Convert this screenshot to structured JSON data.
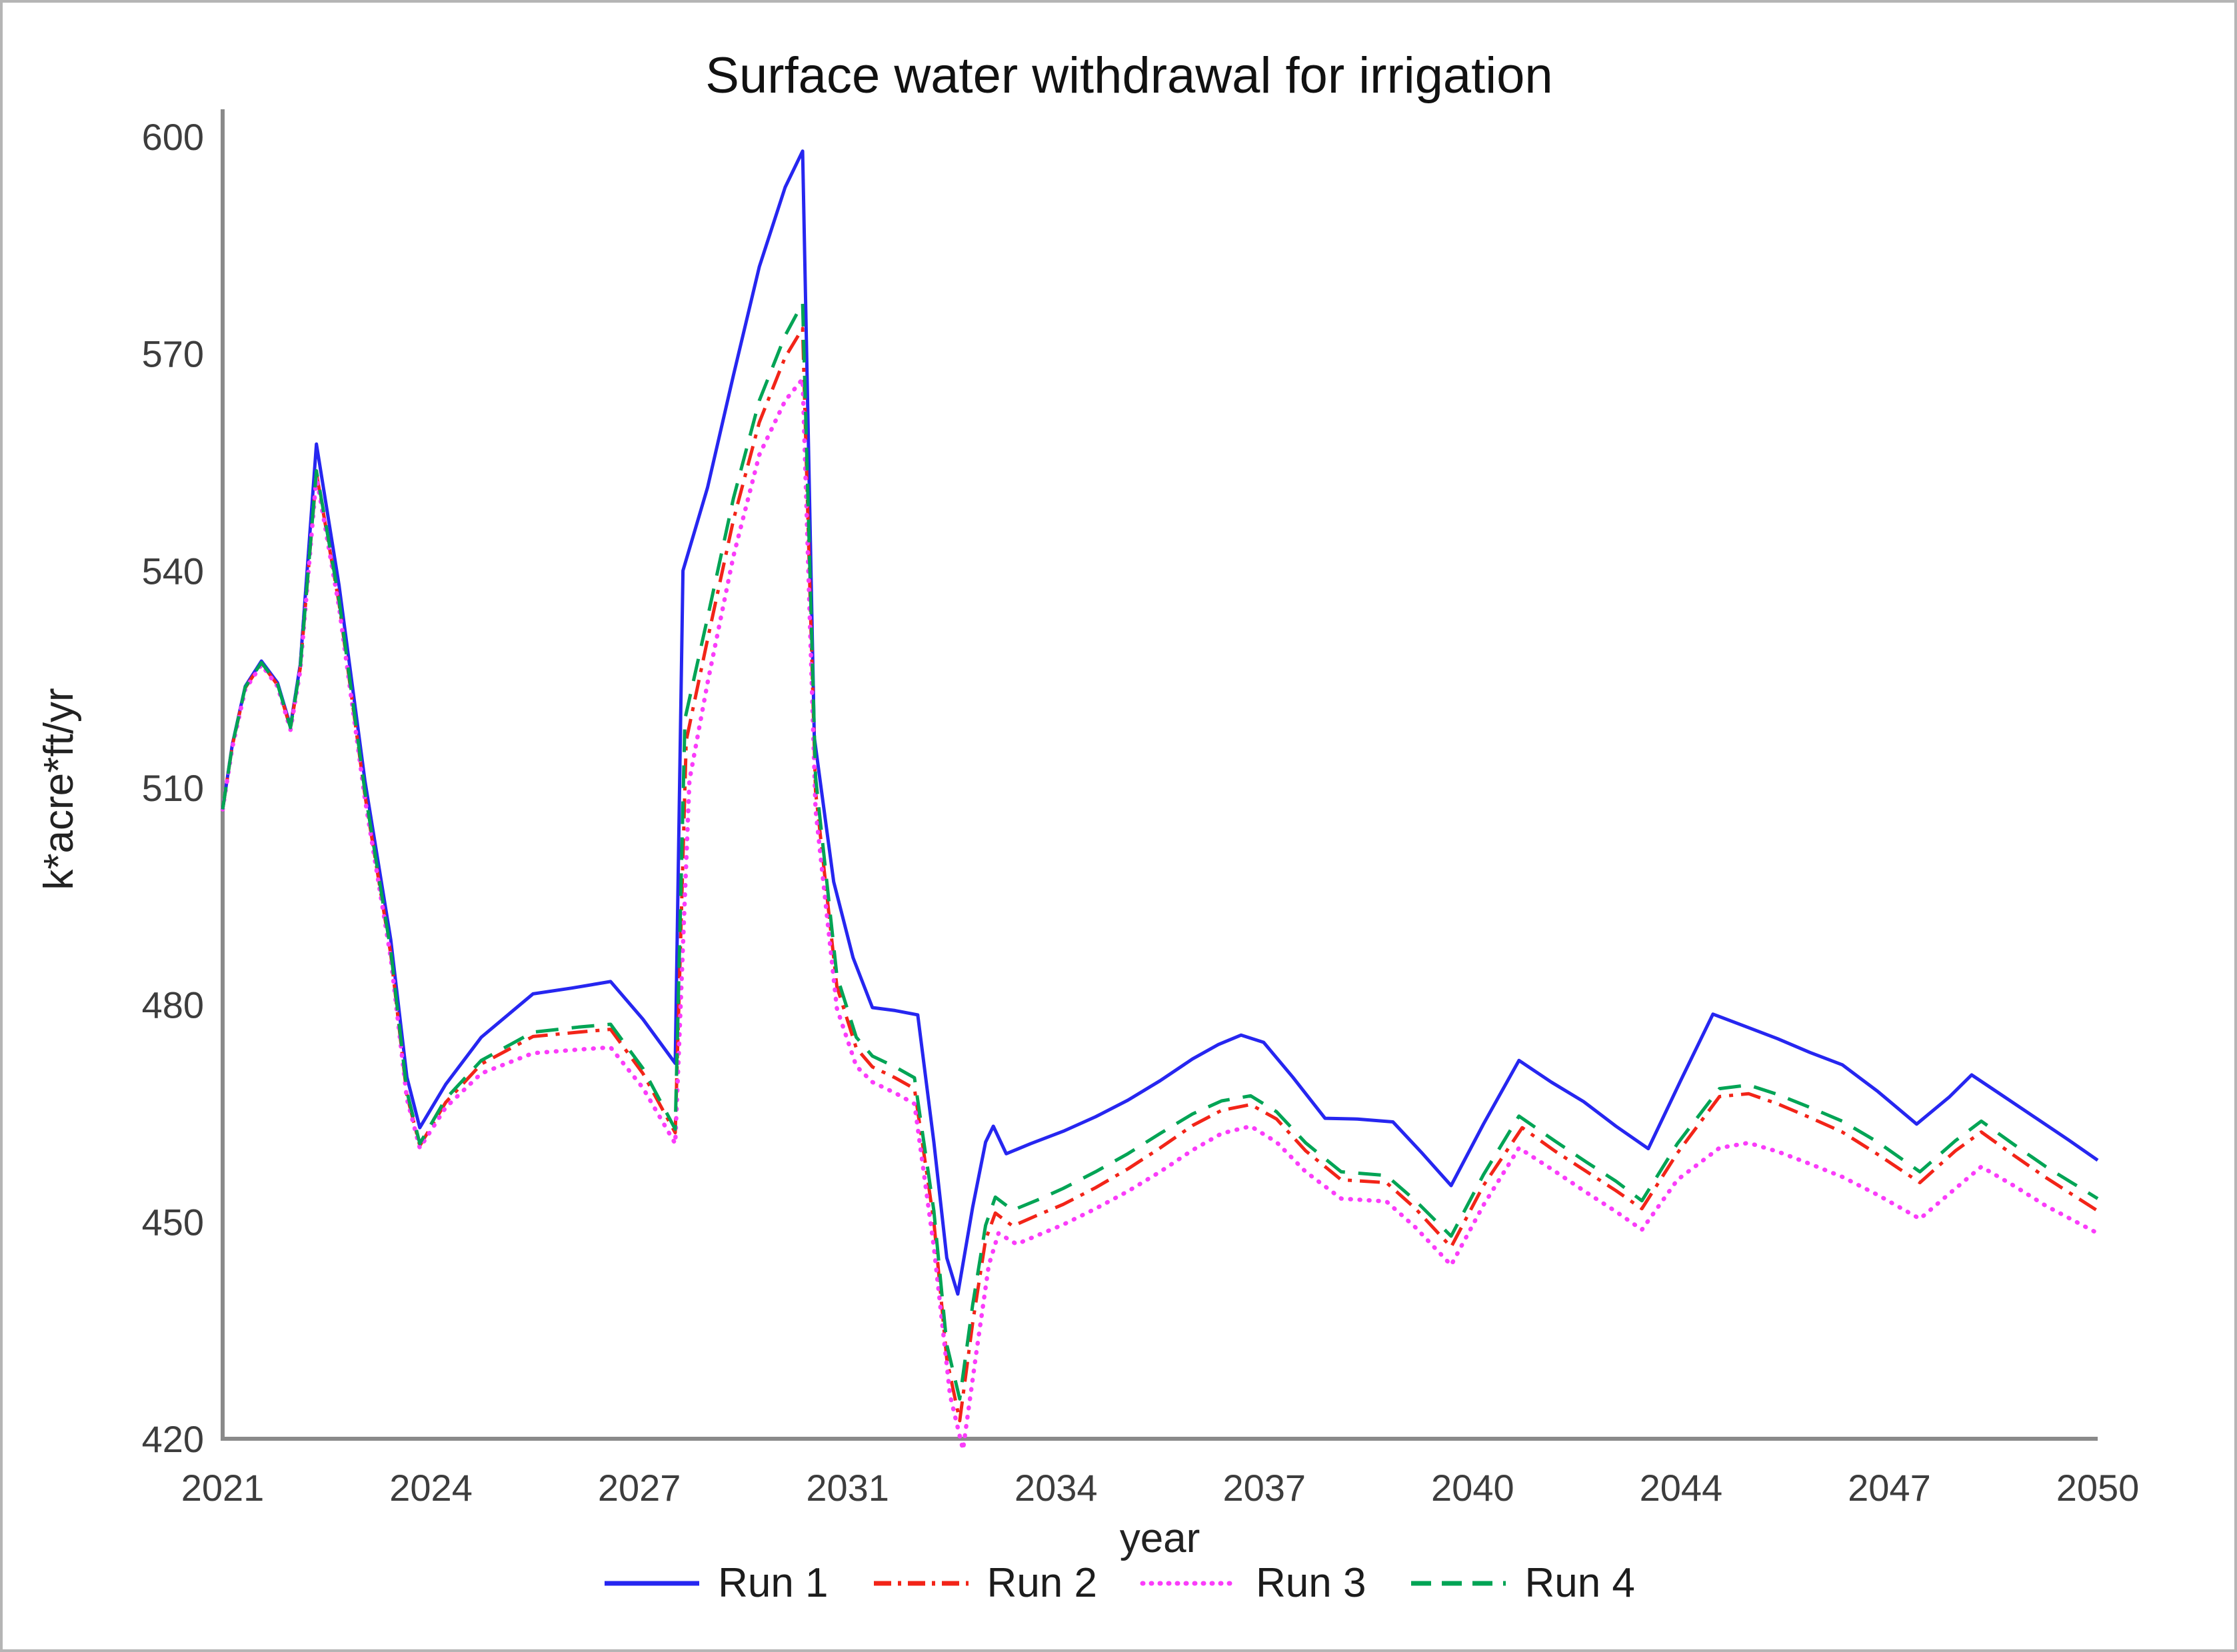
{
  "chart_data": {
    "type": "line",
    "title": "Surface water withdrawal for irrigation",
    "xlabel": "year",
    "ylabel": "k*acre*ft/yr",
    "xlim": [
      2021,
      2050
    ],
    "ylim": [
      420,
      600
    ],
    "grid": false,
    "legend_position": "bottom",
    "axis_color": "#8a8a8a",
    "x_tick_labels": [
      "2021",
      "2024",
      "2027",
      "2031",
      "2034",
      "2037",
      "2040",
      "2044",
      "2047",
      "2050"
    ],
    "y_ticks": [
      420,
      450,
      480,
      510,
      540,
      570,
      600
    ],
    "series": [
      {
        "name": "Run 1",
        "color": "#2626f0",
        "style": "solid",
        "points": [
          [
            2021.0,
            507
          ],
          [
            2021.15,
            516
          ],
          [
            2021.35,
            524
          ],
          [
            2021.6,
            527.5
          ],
          [
            2021.85,
            524.5
          ],
          [
            2022.05,
            518.5
          ],
          [
            2022.2,
            527
          ],
          [
            2022.45,
            557.5
          ],
          [
            2022.8,
            538
          ],
          [
            2023.2,
            511
          ],
          [
            2023.6,
            489
          ],
          [
            2023.85,
            470
          ],
          [
            2024.05,
            463
          ],
          [
            2024.45,
            469
          ],
          [
            2025.0,
            475.5
          ],
          [
            2025.8,
            481.5
          ],
          [
            2026.4,
            482.3
          ],
          [
            2027.0,
            483.2
          ],
          [
            2027.5,
            478
          ],
          [
            2028.0,
            471.9
          ],
          [
            2028.12,
            540
          ],
          [
            2028.5,
            551.5
          ],
          [
            2028.9,
            567
          ],
          [
            2029.3,
            582
          ],
          [
            2029.7,
            593
          ],
          [
            2029.97,
            598
          ],
          [
            2030.15,
            517
          ],
          [
            2030.45,
            497
          ],
          [
            2030.75,
            486.5
          ],
          [
            2031.05,
            479.6
          ],
          [
            2031.4,
            479.2
          ],
          [
            2031.75,
            478.6
          ],
          [
            2032.0,
            461
          ],
          [
            2032.2,
            445
          ],
          [
            2032.37,
            440
          ],
          [
            2032.6,
            452
          ],
          [
            2032.8,
            461
          ],
          [
            2032.92,
            463.2
          ],
          [
            2033.12,
            459.4
          ],
          [
            2033.5,
            460.8
          ],
          [
            2034.0,
            462.5
          ],
          [
            2034.5,
            464.5
          ],
          [
            2035.0,
            466.8
          ],
          [
            2035.5,
            469.5
          ],
          [
            2036.0,
            472.5
          ],
          [
            2036.4,
            474.5
          ],
          [
            2036.75,
            475.8
          ],
          [
            2037.1,
            474.8
          ],
          [
            2037.55,
            470
          ],
          [
            2038.05,
            464.3
          ],
          [
            2038.55,
            464.2
          ],
          [
            2039.1,
            463.8
          ],
          [
            2039.55,
            459.5
          ],
          [
            2040.0,
            455
          ],
          [
            2040.5,
            463.5
          ],
          [
            2041.05,
            472.3
          ],
          [
            2041.55,
            469.3
          ],
          [
            2042.05,
            466.6
          ],
          [
            2042.55,
            463.2
          ],
          [
            2043.05,
            460.1
          ],
          [
            2043.55,
            469.5
          ],
          [
            2044.05,
            478.7
          ],
          [
            2044.55,
            477
          ],
          [
            2045.05,
            475.3
          ],
          [
            2045.55,
            473.4
          ],
          [
            2046.05,
            471.7
          ],
          [
            2046.6,
            468
          ],
          [
            2047.2,
            463.5
          ],
          [
            2047.7,
            467.2
          ],
          [
            2048.05,
            470.3
          ],
          [
            2048.55,
            467.3
          ],
          [
            2049.05,
            464.3
          ],
          [
            2049.55,
            461.3
          ],
          [
            2050.0,
            458.5
          ]
        ]
      },
      {
        "name": "Run 2",
        "color": "#f22418",
        "style": "dashdot",
        "points": [
          [
            2021.0,
            507
          ],
          [
            2021.15,
            515.8
          ],
          [
            2021.35,
            523.8
          ],
          [
            2021.6,
            527.2
          ],
          [
            2021.85,
            524.2
          ],
          [
            2022.05,
            518.2
          ],
          [
            2022.2,
            526.5
          ],
          [
            2022.45,
            553.5
          ],
          [
            2022.8,
            535.5
          ],
          [
            2023.2,
            509
          ],
          [
            2023.6,
            487
          ],
          [
            2023.85,
            467.5
          ],
          [
            2024.05,
            460.5
          ],
          [
            2024.45,
            466.5
          ],
          [
            2025.0,
            471.8
          ],
          [
            2025.8,
            475.6
          ],
          [
            2026.5,
            476.2
          ],
          [
            2027.0,
            476.6
          ],
          [
            2027.5,
            470.5
          ],
          [
            2028.0,
            462.3
          ],
          [
            2028.17,
            516.5
          ],
          [
            2028.5,
            530.5
          ],
          [
            2028.9,
            547
          ],
          [
            2029.3,
            560.5
          ],
          [
            2029.7,
            569.5
          ],
          [
            2029.97,
            573.5
          ],
          [
            2030.17,
            509.5
          ],
          [
            2030.5,
            482.5
          ],
          [
            2030.8,
            474
          ],
          [
            2031.05,
            471.4
          ],
          [
            2031.4,
            469.9
          ],
          [
            2031.7,
            468.4
          ],
          [
            2032.0,
            450
          ],
          [
            2032.2,
            431
          ],
          [
            2032.4,
            422.5
          ],
          [
            2032.6,
            436
          ],
          [
            2032.8,
            447.5
          ],
          [
            2032.95,
            451.2
          ],
          [
            2033.22,
            449.4
          ],
          [
            2033.6,
            450.9
          ],
          [
            2034.0,
            452.4
          ],
          [
            2034.5,
            454.7
          ],
          [
            2035.0,
            457.3
          ],
          [
            2035.5,
            460.2
          ],
          [
            2036.0,
            463.3
          ],
          [
            2036.45,
            465.4
          ],
          [
            2036.9,
            466.2
          ],
          [
            2037.3,
            464.2
          ],
          [
            2037.75,
            459.8
          ],
          [
            2038.3,
            455.8
          ],
          [
            2039.0,
            455.4
          ],
          [
            2039.45,
            451.8
          ],
          [
            2040.0,
            446.5
          ],
          [
            2040.5,
            455
          ],
          [
            2041.1,
            463
          ],
          [
            2041.6,
            459.8
          ],
          [
            2042.1,
            456.9
          ],
          [
            2042.55,
            454.3
          ],
          [
            2042.95,
            451.8
          ],
          [
            2043.5,
            459.5
          ],
          [
            2044.15,
            467.3
          ],
          [
            2044.6,
            467.7
          ],
          [
            2045.05,
            466.3
          ],
          [
            2045.55,
            464.4
          ],
          [
            2046.05,
            462.4
          ],
          [
            2046.6,
            459.3
          ],
          [
            2047.25,
            455.4
          ],
          [
            2047.8,
            459.8
          ],
          [
            2048.2,
            462.4
          ],
          [
            2048.7,
            459.2
          ],
          [
            2049.2,
            456.1
          ],
          [
            2049.6,
            453.8
          ],
          [
            2050.0,
            451.5
          ]
        ]
      },
      {
        "name": "Run 3",
        "color": "#fa3cfa",
        "style": "dotted",
        "points": [
          [
            2021.0,
            507
          ],
          [
            2021.15,
            515.6
          ],
          [
            2021.35,
            523.6
          ],
          [
            2021.6,
            527
          ],
          [
            2021.85,
            524
          ],
          [
            2022.05,
            518
          ],
          [
            2022.2,
            526.2
          ],
          [
            2022.45,
            553
          ],
          [
            2022.8,
            535
          ],
          [
            2023.2,
            508.5
          ],
          [
            2023.6,
            486.5
          ],
          [
            2023.85,
            467
          ],
          [
            2024.05,
            460.2
          ],
          [
            2024.45,
            465.8
          ],
          [
            2025.0,
            470.5
          ],
          [
            2025.8,
            473.3
          ],
          [
            2026.5,
            473.8
          ],
          [
            2027.0,
            474.1
          ],
          [
            2027.5,
            468.5
          ],
          [
            2028.0,
            460.8
          ],
          [
            2028.22,
            511
          ],
          [
            2028.5,
            524.5
          ],
          [
            2028.9,
            542
          ],
          [
            2029.3,
            556
          ],
          [
            2029.7,
            563.5
          ],
          [
            2029.97,
            566.5
          ],
          [
            2030.17,
            507
          ],
          [
            2030.5,
            479.5
          ],
          [
            2030.8,
            471.5
          ],
          [
            2031.05,
            469.3
          ],
          [
            2031.4,
            467.8
          ],
          [
            2031.7,
            466.3
          ],
          [
            2032.0,
            446.5
          ],
          [
            2032.25,
            426
          ],
          [
            2032.45,
            418.5
          ],
          [
            2032.65,
            431.5
          ],
          [
            2032.85,
            444
          ],
          [
            2033.0,
            448.4
          ],
          [
            2033.28,
            446.9
          ],
          [
            2033.65,
            448.3
          ],
          [
            2034.0,
            449.6
          ],
          [
            2034.5,
            451.8
          ],
          [
            2035.0,
            454.2
          ],
          [
            2035.5,
            456.9
          ],
          [
            2036.0,
            459.9
          ],
          [
            2036.45,
            462.2
          ],
          [
            2036.9,
            463.2
          ],
          [
            2037.3,
            461
          ],
          [
            2037.75,
            456.9
          ],
          [
            2038.3,
            453.2
          ],
          [
            2039.0,
            452.8
          ],
          [
            2039.45,
            449.2
          ],
          [
            2040.0,
            444
          ],
          [
            2040.5,
            452.3
          ],
          [
            2041.05,
            460.2
          ],
          [
            2041.6,
            457
          ],
          [
            2042.1,
            454
          ],
          [
            2042.55,
            451.4
          ],
          [
            2042.95,
            448.9
          ],
          [
            2043.5,
            455.8
          ],
          [
            2044.15,
            460.2
          ],
          [
            2044.6,
            460.9
          ],
          [
            2045.05,
            459.7
          ],
          [
            2045.55,
            458
          ],
          [
            2046.05,
            456.2
          ],
          [
            2046.6,
            453.7
          ],
          [
            2047.25,
            450.4
          ],
          [
            2047.8,
            454.6
          ],
          [
            2048.2,
            457.6
          ],
          [
            2048.7,
            455
          ],
          [
            2049.2,
            452.2
          ],
          [
            2049.6,
            450.3
          ],
          [
            2050.0,
            448.4
          ]
        ]
      },
      {
        "name": "Run 4",
        "color": "#00a455",
        "style": "dashed",
        "points": [
          [
            2021.0,
            507
          ],
          [
            2021.15,
            515.9
          ],
          [
            2021.35,
            523.9
          ],
          [
            2021.6,
            527.3
          ],
          [
            2021.85,
            524.3
          ],
          [
            2022.05,
            518.3
          ],
          [
            2022.2,
            526.6
          ],
          [
            2022.45,
            553.8
          ],
          [
            2022.8,
            536
          ],
          [
            2023.2,
            509.5
          ],
          [
            2023.6,
            487.5
          ],
          [
            2023.85,
            468
          ],
          [
            2024.05,
            460.8
          ],
          [
            2024.45,
            467
          ],
          [
            2025.0,
            472.3
          ],
          [
            2025.8,
            476.2
          ],
          [
            2026.5,
            476.9
          ],
          [
            2027.0,
            477.3
          ],
          [
            2027.5,
            471.2
          ],
          [
            2028.0,
            462.8
          ],
          [
            2028.15,
            519.5
          ],
          [
            2028.5,
            533.5
          ],
          [
            2028.9,
            550
          ],
          [
            2029.3,
            563.5
          ],
          [
            2029.7,
            572.5
          ],
          [
            2029.97,
            577
          ],
          [
            2030.17,
            511.5
          ],
          [
            2030.5,
            484
          ],
          [
            2030.8,
            475.5
          ],
          [
            2031.05,
            472.9
          ],
          [
            2031.4,
            471.4
          ],
          [
            2031.7,
            469.9
          ],
          [
            2032.0,
            451.5
          ],
          [
            2032.2,
            433
          ],
          [
            2032.4,
            425.5
          ],
          [
            2032.6,
            438.5
          ],
          [
            2032.8,
            449.5
          ],
          [
            2032.95,
            453.4
          ],
          [
            2033.22,
            451.6
          ],
          [
            2033.6,
            453
          ],
          [
            2034.0,
            454.6
          ],
          [
            2034.5,
            456.9
          ],
          [
            2035.0,
            459.4
          ],
          [
            2035.5,
            462.2
          ],
          [
            2036.0,
            464.9
          ],
          [
            2036.45,
            466.7
          ],
          [
            2036.9,
            467.4
          ],
          [
            2037.3,
            465.2
          ],
          [
            2037.75,
            460.9
          ],
          [
            2038.3,
            456.9
          ],
          [
            2039.0,
            456.4
          ],
          [
            2039.45,
            452.9
          ],
          [
            2040.0,
            448
          ],
          [
            2040.5,
            456.5
          ],
          [
            2041.05,
            464.6
          ],
          [
            2041.6,
            461.2
          ],
          [
            2042.1,
            458.2
          ],
          [
            2042.55,
            455.6
          ],
          [
            2042.95,
            452.9
          ],
          [
            2043.5,
            460.8
          ],
          [
            2044.15,
            468.4
          ],
          [
            2044.6,
            468.9
          ],
          [
            2045.05,
            467.6
          ],
          [
            2045.55,
            465.8
          ],
          [
            2046.05,
            463.9
          ],
          [
            2046.6,
            461
          ],
          [
            2047.25,
            456.9
          ],
          [
            2047.8,
            461.2
          ],
          [
            2048.2,
            463.9
          ],
          [
            2048.7,
            460.7
          ],
          [
            2049.2,
            457.6
          ],
          [
            2049.6,
            455.4
          ],
          [
            2050.0,
            453.2
          ]
        ]
      }
    ]
  }
}
